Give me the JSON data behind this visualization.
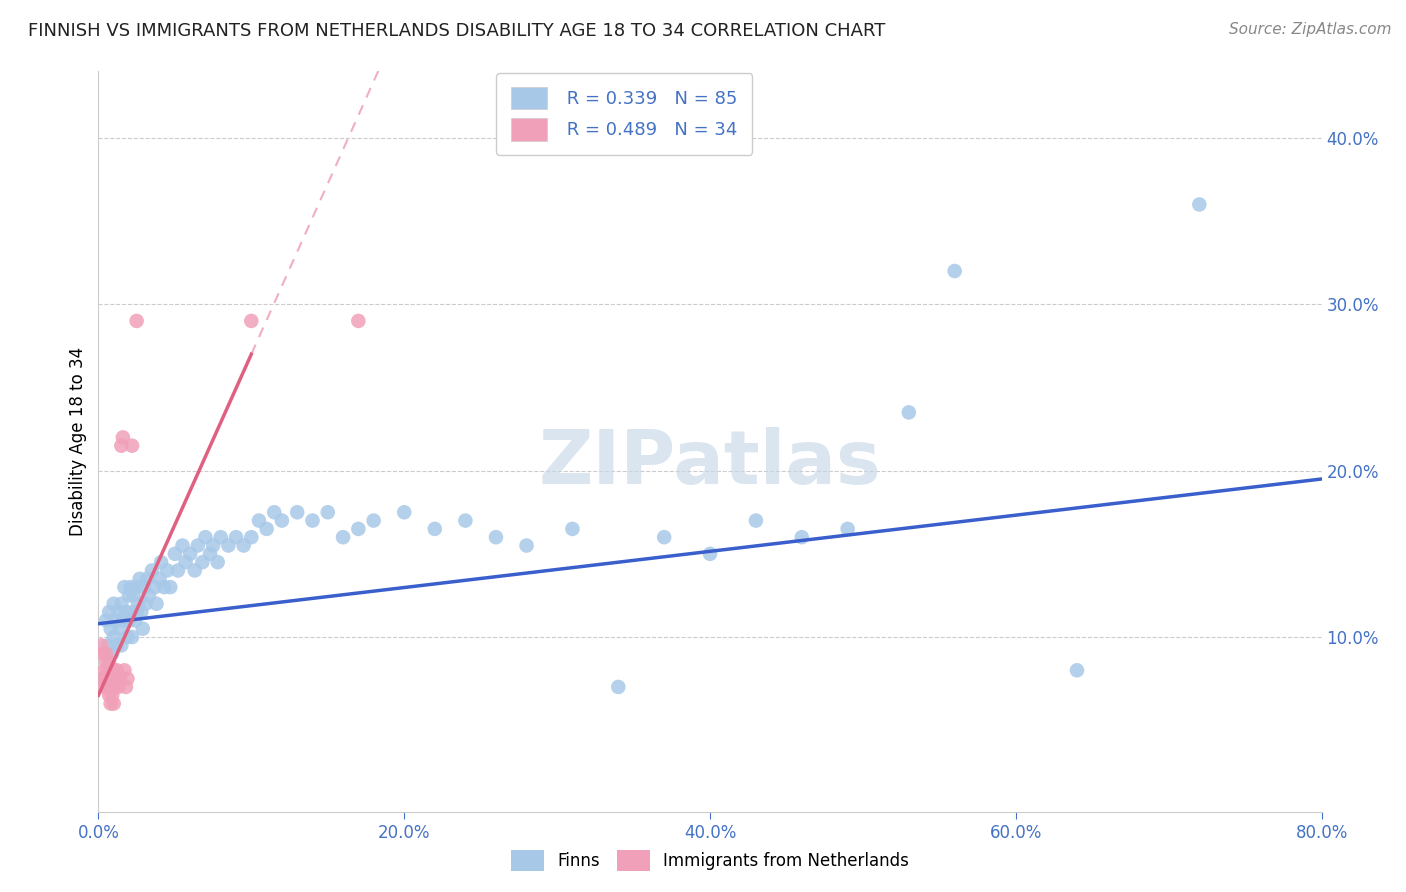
{
  "title": "FINNISH VS IMMIGRANTS FROM NETHERLANDS DISABILITY AGE 18 TO 34 CORRELATION CHART",
  "source": "Source: ZipAtlas.com",
  "ylabel": "Disability Age 18 to 34",
  "xlim": [
    0.0,
    0.8
  ],
  "ylim": [
    -0.005,
    0.44
  ],
  "xticks": [
    0.0,
    0.2,
    0.4,
    0.6,
    0.8
  ],
  "yticks": [
    0.1,
    0.2,
    0.3,
    0.4
  ],
  "blue_scatter_color": "#a8c8e8",
  "pink_scatter_color": "#f0a0b8",
  "blue_line_color": "#3a5fcd",
  "pink_line_color": "#e06080",
  "tick_color": "#4472c4",
  "grid_color": "#cccccc",
  "R_blue": 0.339,
  "N_blue": 85,
  "R_pink": 0.489,
  "N_pink": 34,
  "finns_x": [
    0.005,
    0.006,
    0.007,
    0.008,
    0.009,
    0.01,
    0.01,
    0.011,
    0.012,
    0.013,
    0.014,
    0.015,
    0.015,
    0.016,
    0.017,
    0.018,
    0.019,
    0.02,
    0.02,
    0.021,
    0.022,
    0.022,
    0.023,
    0.024,
    0.025,
    0.025,
    0.026,
    0.027,
    0.028,
    0.029,
    0.03,
    0.031,
    0.032,
    0.033,
    0.035,
    0.037,
    0.038,
    0.04,
    0.041,
    0.043,
    0.045,
    0.047,
    0.05,
    0.052,
    0.055,
    0.057,
    0.06,
    0.063,
    0.065,
    0.068,
    0.07,
    0.073,
    0.075,
    0.078,
    0.08,
    0.085,
    0.09,
    0.095,
    0.1,
    0.105,
    0.11,
    0.115,
    0.12,
    0.13,
    0.14,
    0.15,
    0.16,
    0.17,
    0.18,
    0.2,
    0.22,
    0.24,
    0.26,
    0.28,
    0.31,
    0.34,
    0.37,
    0.4,
    0.43,
    0.46,
    0.49,
    0.53,
    0.56,
    0.64,
    0.72
  ],
  "finns_y": [
    0.11,
    0.095,
    0.115,
    0.105,
    0.09,
    0.1,
    0.12,
    0.11,
    0.095,
    0.115,
    0.105,
    0.12,
    0.095,
    0.11,
    0.13,
    0.115,
    0.1,
    0.125,
    0.11,
    0.13,
    0.115,
    0.1,
    0.125,
    0.11,
    0.13,
    0.115,
    0.12,
    0.135,
    0.115,
    0.105,
    0.13,
    0.12,
    0.135,
    0.125,
    0.14,
    0.13,
    0.12,
    0.135,
    0.145,
    0.13,
    0.14,
    0.13,
    0.15,
    0.14,
    0.155,
    0.145,
    0.15,
    0.14,
    0.155,
    0.145,
    0.16,
    0.15,
    0.155,
    0.145,
    0.16,
    0.155,
    0.16,
    0.155,
    0.16,
    0.17,
    0.165,
    0.175,
    0.17,
    0.175,
    0.17,
    0.175,
    0.16,
    0.165,
    0.17,
    0.175,
    0.165,
    0.17,
    0.16,
    0.155,
    0.165,
    0.07,
    0.16,
    0.15,
    0.17,
    0.16,
    0.165,
    0.235,
    0.32,
    0.08,
    0.36
  ],
  "immigrants_x": [
    0.002,
    0.003,
    0.003,
    0.004,
    0.004,
    0.005,
    0.005,
    0.005,
    0.006,
    0.006,
    0.007,
    0.007,
    0.007,
    0.008,
    0.008,
    0.008,
    0.009,
    0.009,
    0.01,
    0.01,
    0.01,
    0.011,
    0.012,
    0.013,
    0.014,
    0.015,
    0.016,
    0.017,
    0.018,
    0.019,
    0.022,
    0.025,
    0.1,
    0.17
  ],
  "immigrants_y": [
    0.095,
    0.075,
    0.09,
    0.08,
    0.07,
    0.085,
    0.075,
    0.09,
    0.08,
    0.07,
    0.085,
    0.075,
    0.065,
    0.08,
    0.07,
    0.06,
    0.075,
    0.065,
    0.08,
    0.07,
    0.06,
    0.075,
    0.08,
    0.07,
    0.075,
    0.215,
    0.22,
    0.08,
    0.07,
    0.075,
    0.215,
    0.29,
    0.29,
    0.29
  ],
  "blue_line_start_x": 0.0,
  "blue_line_end_x": 0.8,
  "blue_line_start_y": 0.108,
  "blue_line_end_y": 0.195,
  "pink_line_solid_start_x": 0.0,
  "pink_line_solid_end_x": 0.1,
  "pink_line_dashed_start_x": 0.1,
  "pink_line_dashed_end_x": 0.35,
  "pink_line_start_y": 0.065,
  "pink_line_end_y_solid": 0.27,
  "pink_line_end_y_dashed": 0.42
}
